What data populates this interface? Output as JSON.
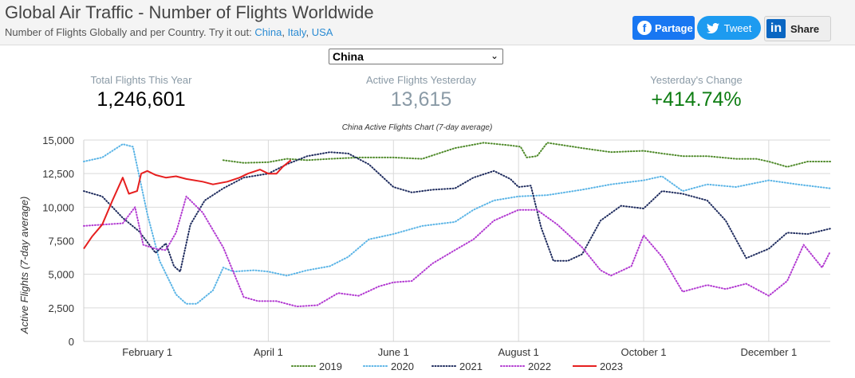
{
  "header": {
    "title": "Global Air Traffic - Number of Flights Worldwide",
    "subtitle_prefix": "Number of Flights Globally and per Country. Try it out:",
    "links": [
      "China",
      "Italy",
      "USA"
    ],
    "share": {
      "facebook": "Partage",
      "twitter": "Tweet",
      "linkedin": "Share"
    }
  },
  "country_select": {
    "value": "China"
  },
  "stats": [
    {
      "label": "Total Flights This Year",
      "value": "1,246,601"
    },
    {
      "label": "Active Flights Yesterday",
      "value": "13,615"
    },
    {
      "label": "Yesterday's Change",
      "value": "+414.74%"
    }
  ],
  "chart_data": {
    "type": "line",
    "title": "China Active Flights Chart (7-day average)",
    "xlabel": "",
    "ylabel": "Active Flights (7-day average)",
    "ylim": [
      0,
      15000
    ],
    "yticks": [
      0,
      2500,
      5000,
      7500,
      10000,
      12500,
      15000
    ],
    "ytick_labels": [
      "0",
      "2,500",
      "5,000",
      "7,500",
      "10,000",
      "12,500",
      "15,000"
    ],
    "xlim": [
      "2023-01-01",
      "2023-12-31"
    ],
    "x_ticks": [
      {
        "date": "2023-02-01",
        "label": "February 1"
      },
      {
        "date": "2023-04-01",
        "label": "April 1"
      },
      {
        "date": "2023-06-01",
        "label": "June 1"
      },
      {
        "date": "2023-08-01",
        "label": "August 1"
      },
      {
        "date": "2023-10-01",
        "label": "October 1"
      },
      {
        "date": "2023-12-01",
        "label": "December 1"
      }
    ],
    "grid": true,
    "legend_position": "bottom",
    "series": [
      {
        "name": "2019",
        "color": "#4f8a2a",
        "dash": "dot",
        "points": [
          [
            "2023-03-10",
            13500
          ],
          [
            "2023-03-20",
            13300
          ],
          [
            "2023-04-01",
            13350
          ],
          [
            "2023-04-10",
            13600
          ],
          [
            "2023-04-20",
            13500
          ],
          [
            "2023-05-01",
            13600
          ],
          [
            "2023-05-15",
            13700
          ],
          [
            "2023-06-01",
            13700
          ],
          [
            "2023-06-15",
            13600
          ],
          [
            "2023-07-01",
            14400
          ],
          [
            "2023-07-15",
            14800
          ],
          [
            "2023-07-28",
            14600
          ],
          [
            "2023-08-02",
            14500
          ],
          [
            "2023-08-05",
            13700
          ],
          [
            "2023-08-10",
            13800
          ],
          [
            "2023-08-15",
            14800
          ],
          [
            "2023-09-01",
            14400
          ],
          [
            "2023-09-15",
            14100
          ],
          [
            "2023-10-01",
            14200
          ],
          [
            "2023-10-10",
            14000
          ],
          [
            "2023-10-20",
            13800
          ],
          [
            "2023-11-01",
            13800
          ],
          [
            "2023-11-15",
            13600
          ],
          [
            "2023-11-25",
            13600
          ],
          [
            "2023-12-01",
            13400
          ],
          [
            "2023-12-10",
            13000
          ],
          [
            "2023-12-20",
            13400
          ],
          [
            "2023-12-31",
            13400
          ]
        ]
      },
      {
        "name": "2020",
        "color": "#5ab4e6",
        "dash": "dot",
        "points": [
          [
            "2023-01-01",
            13400
          ],
          [
            "2023-01-10",
            13700
          ],
          [
            "2023-01-20",
            14700
          ],
          [
            "2023-01-25",
            14500
          ],
          [
            "2023-02-01",
            9500
          ],
          [
            "2023-02-07",
            6000
          ],
          [
            "2023-02-15",
            3500
          ],
          [
            "2023-02-20",
            2800
          ],
          [
            "2023-02-25",
            2800
          ],
          [
            "2023-03-05",
            3800
          ],
          [
            "2023-03-10",
            5500
          ],
          [
            "2023-03-15",
            5200
          ],
          [
            "2023-03-25",
            5300
          ],
          [
            "2023-04-01",
            5200
          ],
          [
            "2023-04-10",
            4900
          ],
          [
            "2023-04-20",
            5300
          ],
          [
            "2023-05-01",
            5600
          ],
          [
            "2023-05-10",
            6300
          ],
          [
            "2023-05-20",
            7600
          ],
          [
            "2023-06-01",
            8000
          ],
          [
            "2023-06-15",
            8600
          ],
          [
            "2023-07-01",
            8900
          ],
          [
            "2023-07-10",
            9800
          ],
          [
            "2023-07-20",
            10500
          ],
          [
            "2023-08-01",
            10800
          ],
          [
            "2023-08-15",
            10900
          ],
          [
            "2023-09-01",
            11300
          ],
          [
            "2023-09-15",
            11700
          ],
          [
            "2023-10-01",
            12000
          ],
          [
            "2023-10-10",
            12300
          ],
          [
            "2023-10-20",
            11200
          ],
          [
            "2023-11-01",
            11700
          ],
          [
            "2023-11-15",
            11500
          ],
          [
            "2023-12-01",
            12000
          ],
          [
            "2023-12-15",
            11700
          ],
          [
            "2023-12-31",
            11400
          ]
        ]
      },
      {
        "name": "2021",
        "color": "#1f2c5e",
        "dash": "dot",
        "points": [
          [
            "2023-01-01",
            11200
          ],
          [
            "2023-01-10",
            10800
          ],
          [
            "2023-01-20",
            9200
          ],
          [
            "2023-01-28",
            8200
          ],
          [
            "2023-02-01",
            7400
          ],
          [
            "2023-02-05",
            6600
          ],
          [
            "2023-02-10",
            7300
          ],
          [
            "2023-02-14",
            5600
          ],
          [
            "2023-02-17",
            5200
          ],
          [
            "2023-02-22",
            8700
          ],
          [
            "2023-03-01",
            10500
          ],
          [
            "2023-03-10",
            11400
          ],
          [
            "2023-03-20",
            12200
          ],
          [
            "2023-04-01",
            12500
          ],
          [
            "2023-04-10",
            13200
          ],
          [
            "2023-04-20",
            13800
          ],
          [
            "2023-05-01",
            14100
          ],
          [
            "2023-05-10",
            14000
          ],
          [
            "2023-05-20",
            13200
          ],
          [
            "2023-06-01",
            11500
          ],
          [
            "2023-06-10",
            11100
          ],
          [
            "2023-06-20",
            11300
          ],
          [
            "2023-07-01",
            11400
          ],
          [
            "2023-07-10",
            12200
          ],
          [
            "2023-07-20",
            12700
          ],
          [
            "2023-07-28",
            12100
          ],
          [
            "2023-08-01",
            11500
          ],
          [
            "2023-08-07",
            11600
          ],
          [
            "2023-08-12",
            8500
          ],
          [
            "2023-08-18",
            6000
          ],
          [
            "2023-08-25",
            6000
          ],
          [
            "2023-09-01",
            6500
          ],
          [
            "2023-09-10",
            9000
          ],
          [
            "2023-09-20",
            10100
          ],
          [
            "2023-10-01",
            9900
          ],
          [
            "2023-10-10",
            11200
          ],
          [
            "2023-10-20",
            11000
          ],
          [
            "2023-11-01",
            10500
          ],
          [
            "2023-11-10",
            9000
          ],
          [
            "2023-11-20",
            6200
          ],
          [
            "2023-12-01",
            6900
          ],
          [
            "2023-12-10",
            8100
          ],
          [
            "2023-12-20",
            8000
          ],
          [
            "2023-12-31",
            8400
          ]
        ]
      },
      {
        "name": "2022",
        "color": "#b23ad1",
        "dash": "dot",
        "points": [
          [
            "2023-01-01",
            8600
          ],
          [
            "2023-01-10",
            8700
          ],
          [
            "2023-01-20",
            8800
          ],
          [
            "2023-01-26",
            10000
          ],
          [
            "2023-01-30",
            7200
          ],
          [
            "2023-02-05",
            6900
          ],
          [
            "2023-02-10",
            6800
          ],
          [
            "2023-02-15",
            8100
          ],
          [
            "2023-02-20",
            10800
          ],
          [
            "2023-02-28",
            9600
          ],
          [
            "2023-03-10",
            7000
          ],
          [
            "2023-03-20",
            3300
          ],
          [
            "2023-03-27",
            3000
          ],
          [
            "2023-04-05",
            3000
          ],
          [
            "2023-04-15",
            2600
          ],
          [
            "2023-04-25",
            2700
          ],
          [
            "2023-05-05",
            3600
          ],
          [
            "2023-05-15",
            3400
          ],
          [
            "2023-05-25",
            4100
          ],
          [
            "2023-06-01",
            4400
          ],
          [
            "2023-06-10",
            4500
          ],
          [
            "2023-06-20",
            5800
          ],
          [
            "2023-07-01",
            6800
          ],
          [
            "2023-07-10",
            7600
          ],
          [
            "2023-07-20",
            9000
          ],
          [
            "2023-08-01",
            9800
          ],
          [
            "2023-08-10",
            9800
          ],
          [
            "2023-08-20",
            8700
          ],
          [
            "2023-09-01",
            7000
          ],
          [
            "2023-09-10",
            5300
          ],
          [
            "2023-09-15",
            4900
          ],
          [
            "2023-09-25",
            5600
          ],
          [
            "2023-10-01",
            7900
          ],
          [
            "2023-10-10",
            6300
          ],
          [
            "2023-10-20",
            3700
          ],
          [
            "2023-11-01",
            4200
          ],
          [
            "2023-11-10",
            3900
          ],
          [
            "2023-11-20",
            4300
          ],
          [
            "2023-12-01",
            3400
          ],
          [
            "2023-12-10",
            4500
          ],
          [
            "2023-12-18",
            7200
          ],
          [
            "2023-12-27",
            5500
          ],
          [
            "2023-12-31",
            6700
          ]
        ]
      },
      {
        "name": "2023",
        "color": "#e61f1f",
        "dash": "solid",
        "points": [
          [
            "2023-01-01",
            6900
          ],
          [
            "2023-01-05",
            7800
          ],
          [
            "2023-01-10",
            8700
          ],
          [
            "2023-01-15",
            10500
          ],
          [
            "2023-01-20",
            12200
          ],
          [
            "2023-01-23",
            11000
          ],
          [
            "2023-01-27",
            11200
          ],
          [
            "2023-01-29",
            12500
          ],
          [
            "2023-02-01",
            12700
          ],
          [
            "2023-02-05",
            12400
          ],
          [
            "2023-02-10",
            12200
          ],
          [
            "2023-02-15",
            12300
          ],
          [
            "2023-02-20",
            12100
          ],
          [
            "2023-02-28",
            11900
          ],
          [
            "2023-03-05",
            11700
          ],
          [
            "2023-03-12",
            11900
          ],
          [
            "2023-03-18",
            12200
          ],
          [
            "2023-03-22",
            12500
          ],
          [
            "2023-03-28",
            12800
          ],
          [
            "2023-04-01",
            12500
          ],
          [
            "2023-04-05",
            12500
          ],
          [
            "2023-04-08",
            13000
          ],
          [
            "2023-04-12",
            13500
          ]
        ]
      }
    ]
  }
}
